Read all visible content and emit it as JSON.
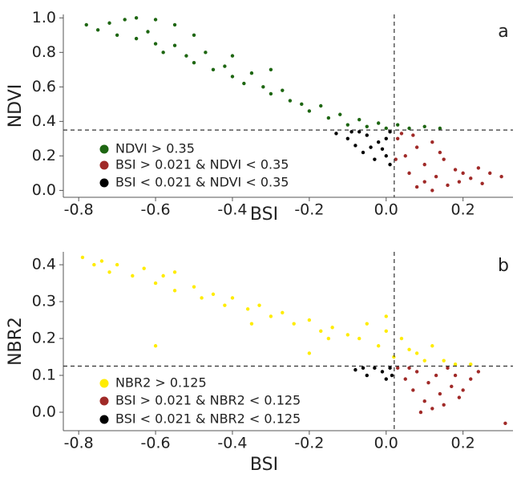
{
  "chart_data": [
    {
      "type": "scatter",
      "panel_label": "a",
      "xlabel": "BSI",
      "ylabel": "NDVI",
      "xlim": [
        -0.84,
        0.33
      ],
      "ylim": [
        -0.04,
        1.02
      ],
      "xticks": [
        -0.8,
        -0.6,
        -0.4,
        -0.2,
        {
          "value": 0,
          "label": "0.0"
        },
        0.2
      ],
      "yticks": [
        {
          "value": 0,
          "label": "0.0"
        },
        0.2,
        0.4,
        0.6,
        0.8,
        {
          "value": 1,
          "label": "1.0"
        }
      ],
      "reference_lines": {
        "x": 0.021,
        "y": 0.35
      },
      "legend": "lower left",
      "series": [
        {
          "name": "NDVI > 0.35",
          "color": "#1e6612",
          "x": [
            -0.78,
            -0.75,
            -0.72,
            -0.7,
            -0.68,
            -0.65,
            -0.62,
            -0.6,
            -0.58,
            -0.55,
            -0.52,
            -0.5,
            -0.47,
            -0.45,
            -0.42,
            -0.4,
            -0.37,
            -0.35,
            -0.32,
            -0.3,
            -0.27,
            -0.25,
            -0.22,
            -0.2,
            -0.17,
            -0.15,
            -0.12,
            -0.1,
            -0.07,
            -0.05,
            -0.02,
            0,
            0.03,
            0.06,
            0.1,
            0.14,
            -0.6,
            -0.5,
            -0.3,
            -0.55,
            -0.65,
            -0.4
          ],
          "y": [
            0.96,
            0.93,
            0.97,
            0.9,
            0.99,
            0.88,
            0.92,
            0.85,
            0.8,
            0.84,
            0.78,
            0.74,
            0.8,
            0.7,
            0.72,
            0.66,
            0.62,
            0.68,
            0.6,
            0.56,
            0.58,
            0.52,
            0.5,
            0.46,
            0.49,
            0.42,
            0.44,
            0.38,
            0.41,
            0.37,
            0.39,
            0.36,
            0.38,
            0.36,
            0.37,
            0.36,
            0.99,
            0.9,
            0.7,
            0.96,
            1.0,
            0.78
          ]
        },
        {
          "name": "BSI > 0.021 & NDVI < 0.35",
          "color": "#a02a28",
          "x": [
            0.03,
            0.05,
            0.06,
            0.08,
            0.1,
            0.1,
            0.12,
            0.13,
            0.15,
            0.16,
            0.18,
            0.19,
            0.2,
            0.22,
            0.24,
            0.25,
            0.08,
            0.04,
            0.07,
            0.12,
            0.3,
            0.27,
            0.025,
            0.14
          ],
          "y": [
            0.3,
            0.2,
            0.1,
            0.25,
            0.05,
            0.15,
            0.28,
            0.08,
            0.18,
            0.03,
            0.12,
            0.05,
            0.1,
            0.07,
            0.13,
            0.04,
            0.02,
            0.33,
            0.32,
            0.0,
            0.08,
            0.1,
            0.18,
            0.22
          ]
        },
        {
          "name": "BSI < 0.021 & NDVI < 0.35",
          "color": "#000000",
          "x": [
            -0.13,
            -0.1,
            -0.08,
            -0.06,
            -0.05,
            -0.03,
            -0.02,
            0,
            0.01,
            0,
            -0.07,
            -0.04,
            0.01,
            -0.09,
            -0.01
          ],
          "y": [
            0.33,
            0.3,
            0.26,
            0.22,
            0.32,
            0.18,
            0.28,
            0.2,
            0.15,
            0.3,
            0.34,
            0.25,
            0.34,
            0.34,
            0.24
          ]
        }
      ]
    },
    {
      "type": "scatter",
      "panel_label": "b",
      "xlabel": "BSI",
      "ylabel": "NBR2",
      "xlim": [
        -0.84,
        0.33
      ],
      "ylim": [
        -0.05,
        0.435
      ],
      "xticks": [
        -0.8,
        -0.6,
        -0.4,
        -0.2,
        {
          "value": 0,
          "label": "0.0"
        },
        0.2
      ],
      "yticks": [
        {
          "value": 0,
          "label": "0.0"
        },
        0.1,
        0.2,
        0.3,
        0.4
      ],
      "reference_lines": {
        "x": 0.021,
        "y": 0.125
      },
      "legend": "lower left",
      "series": [
        {
          "name": "NBR2 > 0.125",
          "color": "#ffec00",
          "x": [
            -0.79,
            -0.76,
            -0.74,
            -0.72,
            -0.7,
            -0.66,
            -0.63,
            -0.6,
            -0.58,
            -0.55,
            -0.5,
            -0.48,
            -0.45,
            -0.42,
            -0.4,
            -0.36,
            -0.33,
            -0.3,
            -0.27,
            -0.24,
            -0.2,
            -0.17,
            -0.14,
            -0.1,
            -0.07,
            -0.05,
            -0.02,
            0,
            0.02,
            0.04,
            0.06,
            0.08,
            0.1,
            0.12,
            0.15,
            0.18,
            0.22,
            -0.55,
            -0.35,
            -0.15,
            -0.6,
            -0.2,
            0
          ],
          "y": [
            0.42,
            0.4,
            0.41,
            0.38,
            0.4,
            0.37,
            0.39,
            0.35,
            0.37,
            0.33,
            0.34,
            0.31,
            0.32,
            0.29,
            0.31,
            0.28,
            0.29,
            0.26,
            0.27,
            0.24,
            0.25,
            0.22,
            0.23,
            0.21,
            0.2,
            0.24,
            0.18,
            0.22,
            0.15,
            0.2,
            0.17,
            0.16,
            0.14,
            0.18,
            0.14,
            0.13,
            0.13,
            0.38,
            0.24,
            0.2,
            0.18,
            0.16,
            0.26
          ]
        },
        {
          "name": "BSI > 0.021 & NBR2 < 0.125",
          "color": "#a02a28",
          "x": [
            0.03,
            0.05,
            0.07,
            0.08,
            0.1,
            0.11,
            0.13,
            0.14,
            0.15,
            0.17,
            0.18,
            0.19,
            0.2,
            0.22,
            0.24,
            0.12,
            0.06,
            0.09,
            0.31,
            0.16
          ],
          "y": [
            0.12,
            0.09,
            0.06,
            0.11,
            0.03,
            0.08,
            0.1,
            0.05,
            0.02,
            0.07,
            0.1,
            0.04,
            0.06,
            0.09,
            0.11,
            0.01,
            0.12,
            0.0,
            -0.03,
            0.12
          ]
        },
        {
          "name": "BSI < 0.021 & NBR2 < 0.125",
          "color": "#000000",
          "x": [
            -0.08,
            -0.05,
            -0.03,
            -0.01,
            0,
            0.01,
            -0.06,
            0.015
          ],
          "y": [
            0.115,
            0.1,
            0.12,
            0.11,
            0.09,
            0.12,
            0.12,
            0.1
          ]
        }
      ]
    }
  ]
}
